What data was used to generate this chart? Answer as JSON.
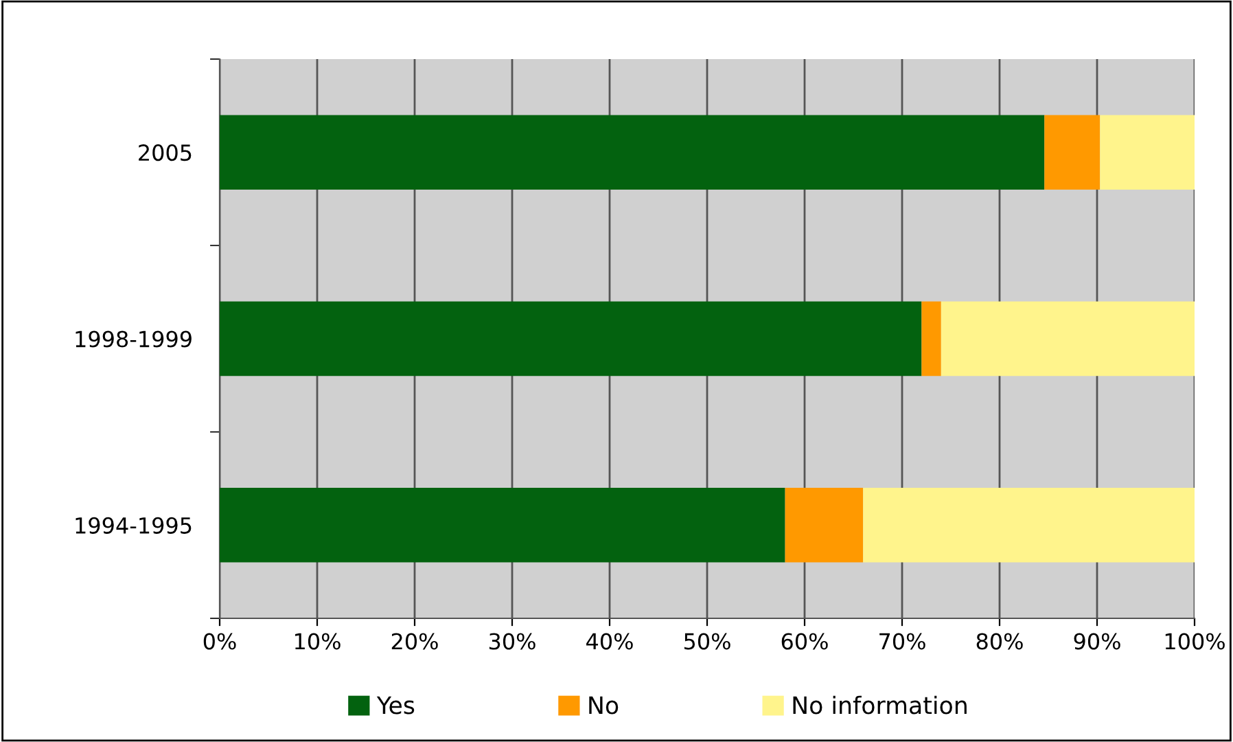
{
  "chart_data": {
    "type": "bar",
    "orientation": "horizontal",
    "stacked": true,
    "categories": [
      "2005",
      "1998-1999",
      "1994-1995"
    ],
    "series": [
      {
        "name": "Yes",
        "color": "#03620f",
        "values": [
          84.6,
          72,
          58
        ]
      },
      {
        "name": "No",
        "color": "#ff9900",
        "values": [
          5.7,
          2,
          8
        ]
      },
      {
        "name": "No information",
        "color": "#fff48c",
        "values": [
          9.7,
          26,
          34
        ]
      }
    ],
    "xlim": [
      0,
      100
    ],
    "xticks": [
      {
        "value": 0,
        "label": "0%"
      },
      {
        "value": 10,
        "label": "10%"
      },
      {
        "value": 20,
        "label": "20%"
      },
      {
        "value": 30,
        "label": "30%"
      },
      {
        "value": 40,
        "label": "40%"
      },
      {
        "value": 50,
        "label": "50%"
      },
      {
        "value": 60,
        "label": "60%"
      },
      {
        "value": 70,
        "label": "70%"
      },
      {
        "value": 80,
        "label": "80%"
      },
      {
        "value": 90,
        "label": "90%"
      },
      {
        "value": 100,
        "label": "100%"
      }
    ],
    "grid": "x",
    "legend": "bottom"
  }
}
